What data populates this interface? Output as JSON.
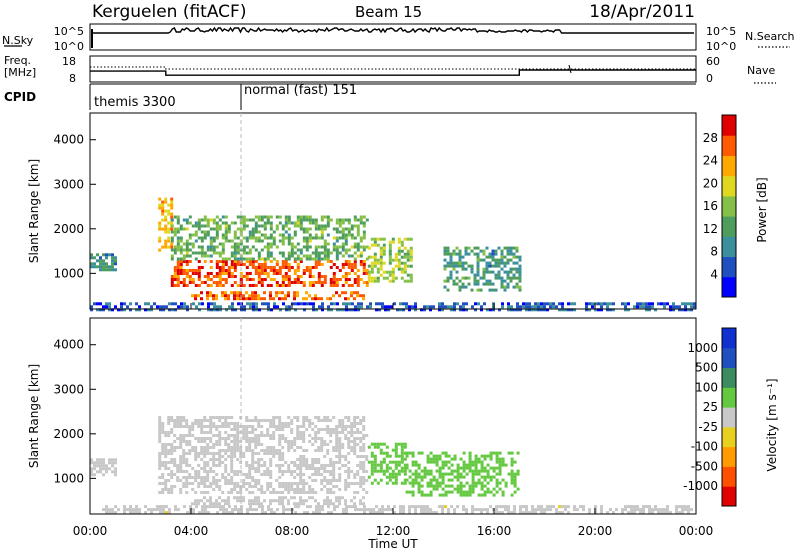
{
  "header": {
    "station": "Kerguelen (fitACF)",
    "beam": "Beam 15",
    "date": "18/Apr/2011"
  },
  "noise_panel": {
    "left_label": "N.Sky",
    "right_label": "N.Search",
    "left_ticks": [
      "10^5",
      "10^0"
    ],
    "right_ticks": [
      "10^5",
      "10^0"
    ]
  },
  "freq_panel": {
    "left_label_line1": "Freq.",
    "left_label_line2": "[MHz]",
    "right_label": "Nave",
    "left_ticks": [
      "18",
      "8"
    ],
    "right_ticks": [
      "60",
      "0"
    ],
    "freq_series": [
      {
        "t": 0.0,
        "mhz": 12.2
      },
      {
        "t": 3.0,
        "mhz": 12.2
      },
      {
        "t": 3.0,
        "mhz": 10.6
      },
      {
        "t": 17.0,
        "mhz": 10.6
      },
      {
        "t": 17.0,
        "mhz": 12.6
      },
      {
        "t": 24.0,
        "mhz": 12.6
      }
    ]
  },
  "cpid": {
    "label": "CPID",
    "modes": [
      {
        "start_hour": 0,
        "name": "themis 3300"
      },
      {
        "start_hour": 6,
        "name": "normal (fast) 151"
      }
    ]
  },
  "chart_data": [
    {
      "type": "heatmap",
      "quantity": "power",
      "ylabel": "Slant Range [km]",
      "xlabel": "Time UT",
      "xlim": [
        0,
        24
      ],
      "ylim": [
        200,
        4600
      ],
      "x_ticks": [
        "00:00",
        "04:00",
        "08:00",
        "12:00",
        "16:00",
        "20:00",
        "00:00"
      ],
      "y_ticks": [
        1000,
        2000,
        3000,
        4000
      ],
      "colorbar": {
        "label": "Power [dB]",
        "ticks": [
          "28",
          "24",
          "20",
          "16",
          "12",
          "8",
          "4"
        ],
        "range": [
          0,
          32
        ],
        "colors": [
          "#0000ff",
          "#2050c0",
          "#3c8f9c",
          "#4f9d5c",
          "#84c048",
          "#e0d820",
          "#ffa800",
          "#ff5a00",
          "#e00000"
        ]
      },
      "regions": [
        {
          "t0": 0.0,
          "t1": 1.0,
          "r0": 1100,
          "r1": 1450,
          "value": 10
        },
        {
          "t0": 2.7,
          "t1": 3.2,
          "r0": 1500,
          "r1": 2700,
          "value": 22
        },
        {
          "t0": 3.2,
          "t1": 11.0,
          "r0": 700,
          "r1": 1300,
          "value": 27
        },
        {
          "t0": 3.2,
          "t1": 11.0,
          "r0": 1300,
          "r1": 2300,
          "value": 14
        },
        {
          "t0": 4.0,
          "t1": 10.8,
          "r0": 420,
          "r1": 600,
          "value": 26
        },
        {
          "t0": 11.0,
          "t1": 12.7,
          "r0": 800,
          "r1": 1800,
          "value": 17
        },
        {
          "t0": 14.0,
          "t1": 17.0,
          "r0": 650,
          "r1": 1600,
          "value": 11
        },
        {
          "t0": 0.0,
          "t1": 24.0,
          "r0": 200,
          "r1": 350,
          "value": 6
        }
      ]
    },
    {
      "type": "heatmap",
      "quantity": "velocity",
      "ylabel": "Slant Range [km]",
      "xlabel": "Time UT",
      "xlim": [
        0,
        24
      ],
      "ylim": [
        200,
        4600
      ],
      "x_ticks": [
        "00:00",
        "04:00",
        "08:00",
        "12:00",
        "16:00",
        "20:00",
        "00:00"
      ],
      "y_ticks": [
        1000,
        2000,
        3000,
        4000
      ],
      "colorbar": {
        "label": "Velocity [m s⁻¹]",
        "ticks": [
          "1000",
          "500",
          "100",
          "25",
          "-25",
          "-100",
          "-500",
          "-1000"
        ],
        "range": [
          -1250,
          1250
        ],
        "colors": [
          "#e00000",
          "#ff5000",
          "#ff9a00",
          "#e8d020",
          "#c8c8c8",
          "#64c840",
          "#3c8c60",
          "#2050c0",
          "#1030d0"
        ]
      },
      "regions": [
        {
          "t0": 0.0,
          "t1": 1.0,
          "r0": 1100,
          "r1": 1450,
          "value": -40
        },
        {
          "t0": 2.7,
          "t1": 11.0,
          "r0": 700,
          "r1": 2400,
          "value": 0
        },
        {
          "t0": 4.0,
          "t1": 10.8,
          "r0": 420,
          "r1": 600,
          "value": 0
        },
        {
          "t0": 11.0,
          "t1": 12.5,
          "r0": 900,
          "r1": 1800,
          "value": 200
        },
        {
          "t0": 12.5,
          "t1": 17.0,
          "r0": 600,
          "r1": 1600,
          "value": 300
        },
        {
          "t0": 0.0,
          "t1": 24.0,
          "r0": 200,
          "r1": 400,
          "value": -80
        }
      ]
    }
  ]
}
